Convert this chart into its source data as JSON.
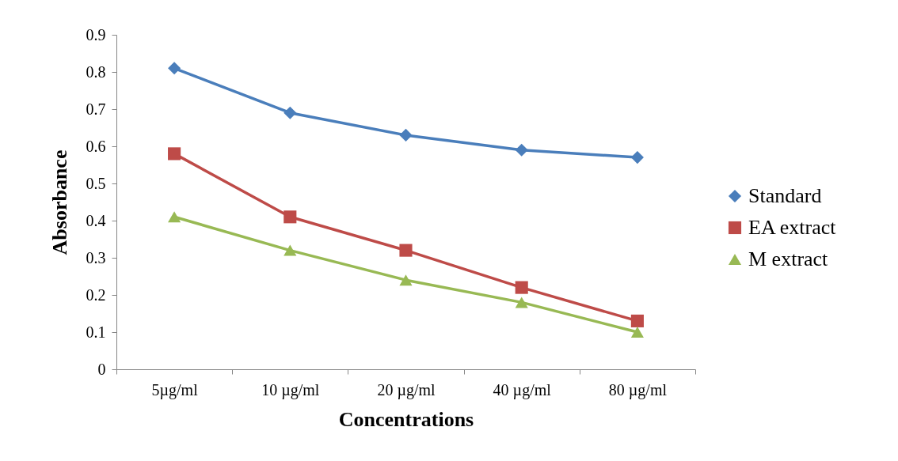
{
  "chart_data": {
    "type": "line",
    "xlabel": "Concentrations",
    "ylabel": "Absorbance",
    "categories": [
      "5µg/ml",
      "10 µg/ml",
      "20 µg/ml",
      "40 µg/ml",
      "80 µg/ml"
    ],
    "ylim": [
      0,
      0.9
    ],
    "yticks": [
      0,
      0.1,
      0.2,
      0.3,
      0.4,
      0.5,
      0.6,
      0.7,
      0.8,
      0.9
    ],
    "grid": false,
    "legend": "right",
    "series": [
      {
        "name": "Standard",
        "color": "#4a7ebb",
        "marker": "diamond",
        "values": [
          0.81,
          0.69,
          0.63,
          0.59,
          0.57
        ]
      },
      {
        "name": "EA extract",
        "color": "#be4b48",
        "marker": "square",
        "values": [
          0.58,
          0.41,
          0.32,
          0.22,
          0.13
        ]
      },
      {
        "name": "M extract",
        "color": "#98b954",
        "marker": "triangle",
        "values": [
          0.41,
          0.32,
          0.24,
          0.18,
          0.1
        ]
      }
    ]
  }
}
